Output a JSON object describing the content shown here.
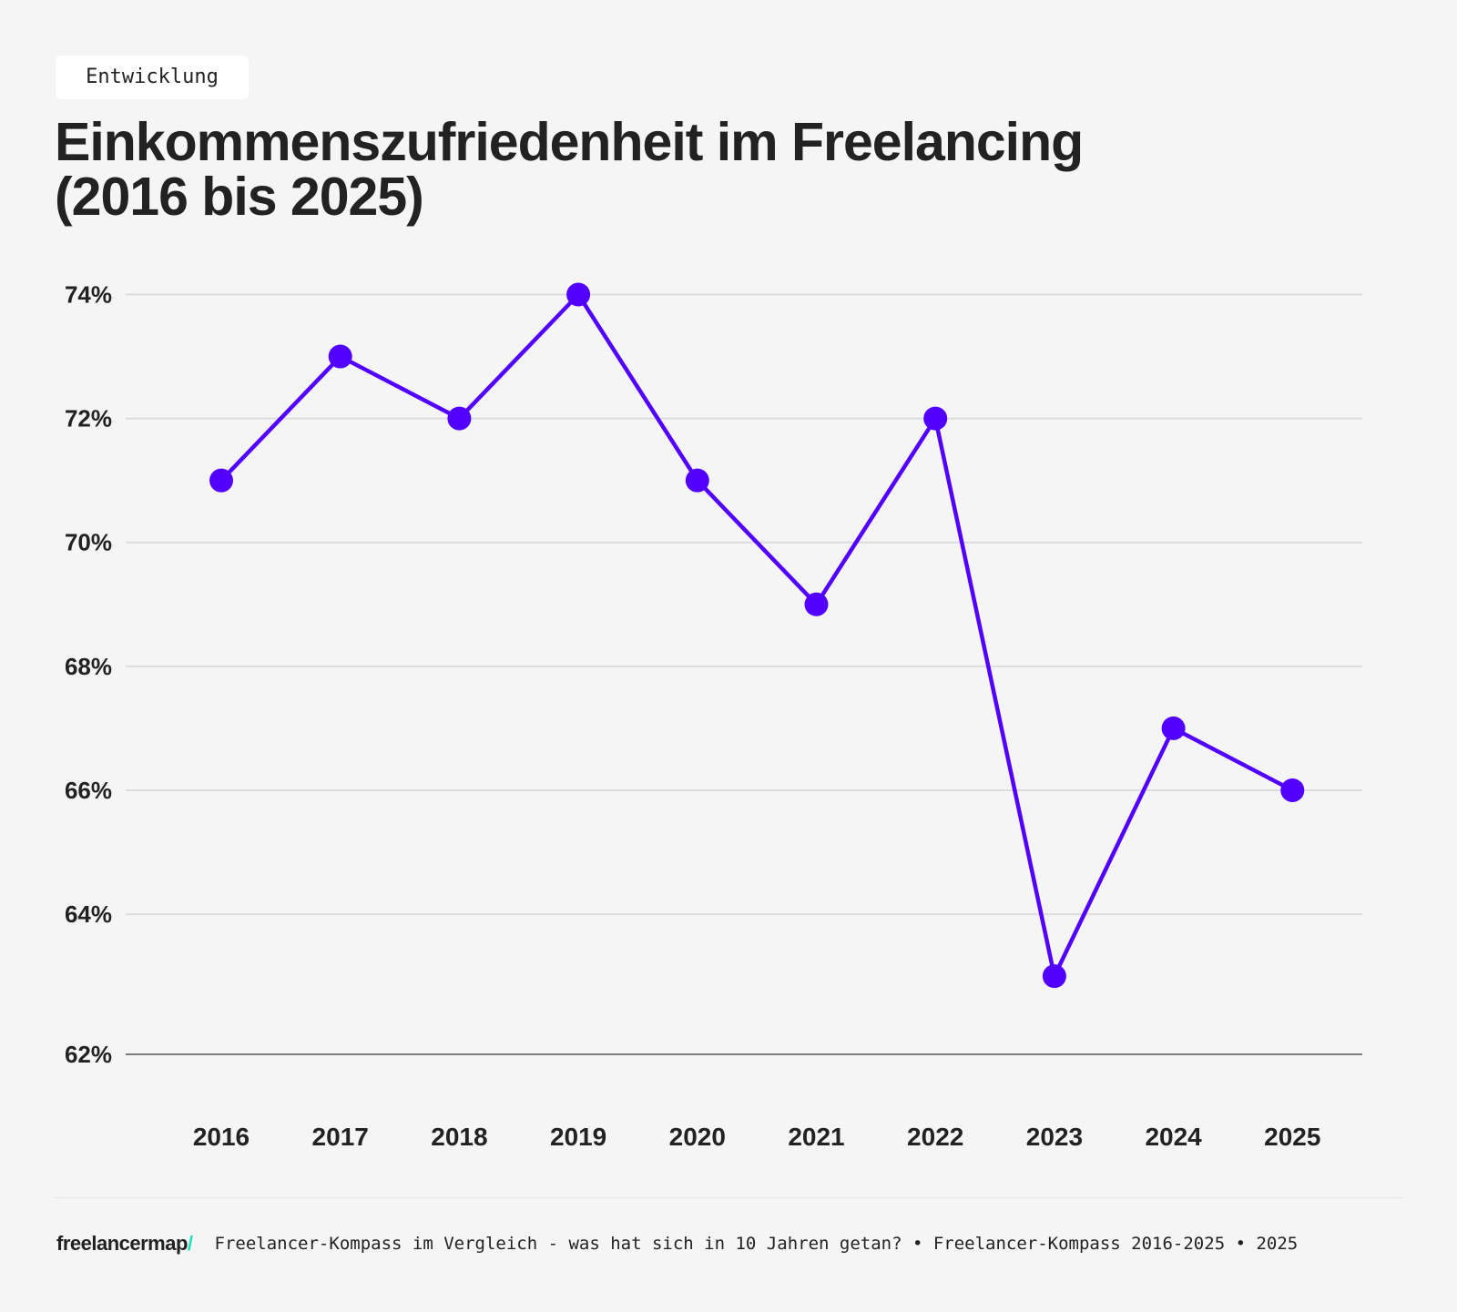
{
  "tag": "Entwicklung",
  "title_line1": "Einkommenszufriedenheit im Freelancing",
  "title_line2": "(2016 bis 2025)",
  "footer": {
    "logo": "freelancermap",
    "logo_slash": "/",
    "text": "Freelancer-Kompass im Vergleich - was hat sich in 10 Jahren getan? • Freelancer-Kompass 2016-2025 • 2025"
  },
  "colors": {
    "line": "#5200ff",
    "grid": "#dcdcdc",
    "axis": "#555555",
    "logo_accent": "#1ee3c0"
  },
  "chart_data": {
    "type": "line",
    "categories": [
      "2016",
      "2017",
      "2018",
      "2019",
      "2020",
      "2021",
      "2022",
      "2023",
      "2024",
      "2025"
    ],
    "values": [
      71,
      73,
      72,
      74,
      71,
      69,
      72,
      63,
      67,
      66
    ],
    "yticks": [
      74,
      72,
      70,
      68,
      66,
      64
    ],
    "ytick_labels": [
      "74%",
      "72%",
      "70%",
      "68%",
      "66%",
      "64%"
    ],
    "ybase_label": "62%",
    "ylim": [
      62,
      74
    ],
    "grid": true,
    "markers": true
  }
}
